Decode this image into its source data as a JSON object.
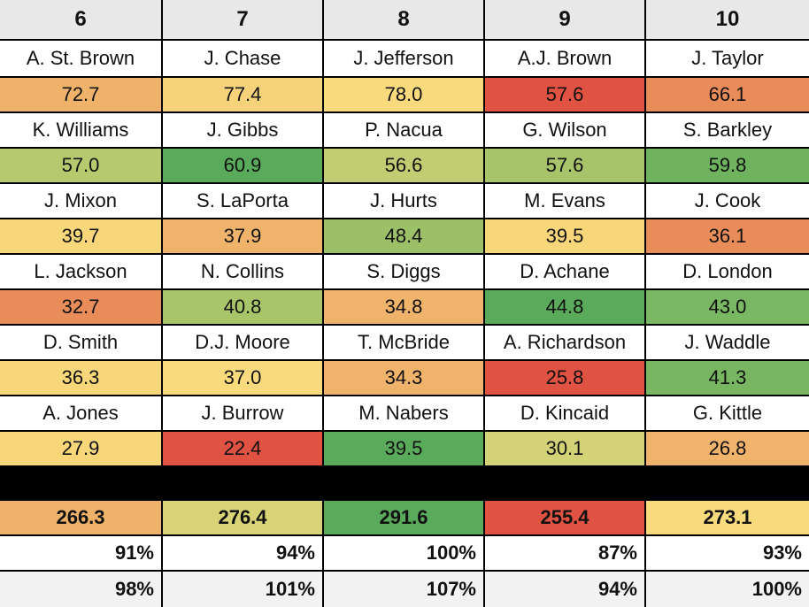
{
  "headers": [
    "6",
    "7",
    "8",
    "9",
    "10"
  ],
  "players": [
    {
      "names": [
        "A. St. Brown",
        "J. Chase",
        "J. Jefferson",
        "A.J. Brown",
        "J. Taylor"
      ],
      "scores": [
        "72.7",
        "77.4",
        "78.0",
        "57.6",
        "66.1"
      ],
      "colors": [
        "#efb26a",
        "#f6d27a",
        "#f9da7c",
        "#e05242",
        "#e88d5a"
      ]
    },
    {
      "names": [
        "K. Williams",
        "J. Gibbs",
        "P. Nacua",
        "G. Wilson",
        "S. Barkley"
      ],
      "scores": [
        "57.0",
        "60.9",
        "56.6",
        "57.6",
        "59.8"
      ],
      "colors": [
        "#b6c96e",
        "#5aaa5b",
        "#c2cc72",
        "#a7c46a",
        "#6fb35f"
      ]
    },
    {
      "names": [
        "J. Mixon",
        "S. LaPorta",
        "J. Hurts",
        "M. Evans",
        "J. Cook"
      ],
      "scores": [
        "39.7",
        "37.9",
        "48.4",
        "39.5",
        "36.1"
      ],
      "colors": [
        "#f8d77b",
        "#efb36b",
        "#9cc067",
        "#f8d77b",
        "#e88d5a"
      ]
    },
    {
      "names": [
        "L. Jackson",
        "N. Collins",
        "S. Diggs",
        "D. Achane",
        "D. London"
      ],
      "scores": [
        "32.7",
        "40.8",
        "34.8",
        "44.8",
        "43.0"
      ],
      "colors": [
        "#e88d5a",
        "#a8c56a",
        "#efb36b",
        "#5aaa5b",
        "#7ab762"
      ]
    },
    {
      "names": [
        "D. Smith",
        "D.J. Moore",
        "T. McBride",
        "A. Richardson",
        "J. Waddle"
      ],
      "scores": [
        "36.3",
        "37.0",
        "34.3",
        "25.8",
        "41.3"
      ],
      "colors": [
        "#f8d77b",
        "#f9da7c",
        "#efb36b",
        "#e05242",
        "#78b661"
      ]
    },
    {
      "names": [
        "A. Jones",
        "J. Burrow",
        "M. Nabers",
        "D. Kincaid",
        "G. Kittle"
      ],
      "scores": [
        "27.9",
        "22.4",
        "39.5",
        "30.1",
        "26.8"
      ],
      "colors": [
        "#f8d77b",
        "#e05242",
        "#5aaa5b",
        "#d3d276",
        "#efb36b"
      ]
    }
  ],
  "totals": {
    "values": [
      "266.3",
      "276.4",
      "291.6",
      "255.4",
      "273.1"
    ],
    "colors": [
      "#efb26a",
      "#d8d377",
      "#5aaa5b",
      "#e05242",
      "#f9da7c"
    ]
  },
  "pct_row_1": [
    "91%",
    "94%",
    "100%",
    "87%",
    "93%"
  ],
  "pct_row_2": [
    "98%",
    "101%",
    "107%",
    "94%",
    "100%"
  ]
}
